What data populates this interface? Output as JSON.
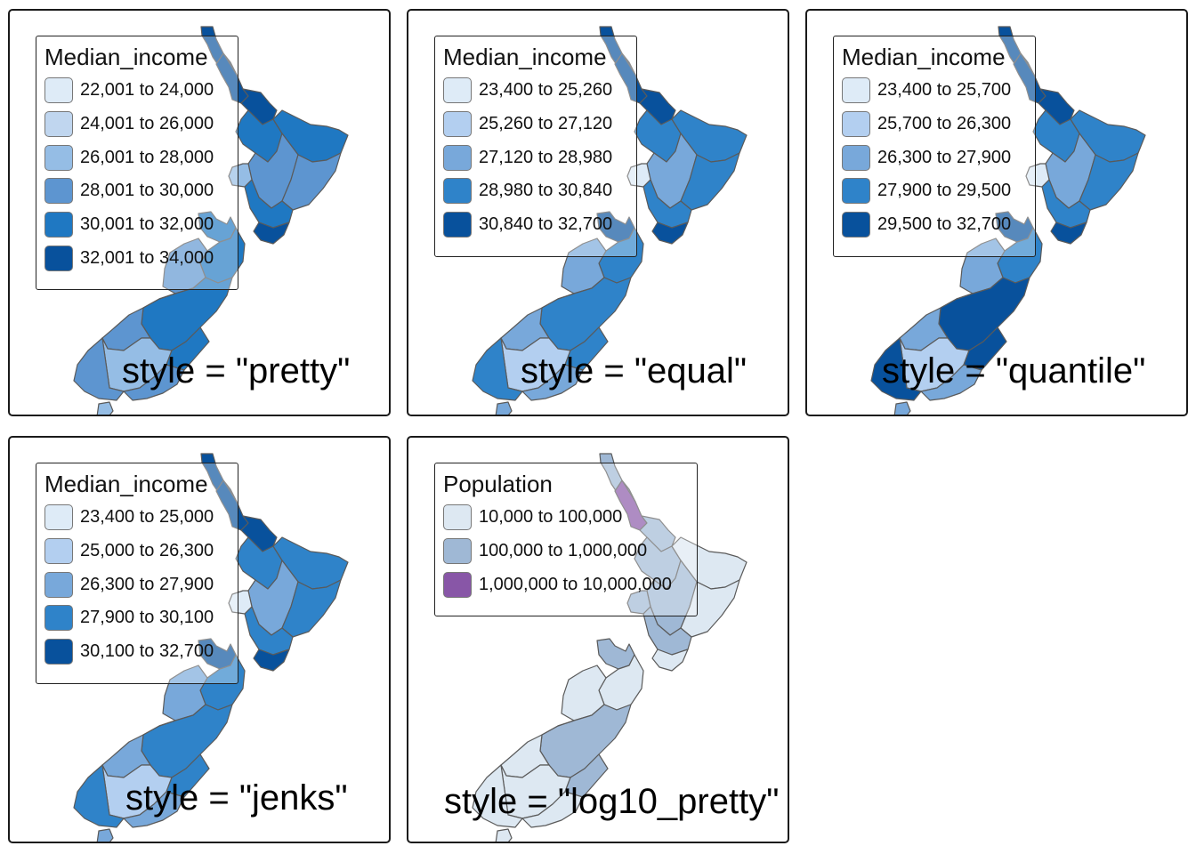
{
  "panels": [
    {
      "legend_title": "Median_income",
      "style_label": "style = \"pretty\"",
      "classes": [
        {
          "label": "22,001 to 24,000",
          "color": "#deebf7"
        },
        {
          "label": "24,001 to 26,000",
          "color": "#c0d6ef"
        },
        {
          "label": "26,001 to 28,000",
          "color": "#95bde5"
        },
        {
          "label": "28,001 to 30,000",
          "color": "#5d95d0"
        },
        {
          "label": "30,001 to 32,000",
          "color": "#1f78c2"
        },
        {
          "label": "32,001 to 34,000",
          "color": "#08519c"
        }
      ]
    },
    {
      "legend_title": "Median_income",
      "style_label": "style = \"equal\"",
      "classes": [
        {
          "label": "23,400 to 25,260",
          "color": "#deebf7"
        },
        {
          "label": "25,260 to 27,120",
          "color": "#b3cff0"
        },
        {
          "label": "27,120 to 28,980",
          "color": "#78a8da"
        },
        {
          "label": "28,980 to 30,840",
          "color": "#2f83c9"
        },
        {
          "label": "30,840 to 32,700",
          "color": "#08519c"
        }
      ]
    },
    {
      "legend_title": "Median_income",
      "style_label": "style = \"quantile\"",
      "classes": [
        {
          "label": "23,400 to 25,700",
          "color": "#deebf7"
        },
        {
          "label": "25,700 to 26,300",
          "color": "#b3cff0"
        },
        {
          "label": "26,300 to 27,900",
          "color": "#78a8da"
        },
        {
          "label": "27,900 to 29,500",
          "color": "#2f83c9"
        },
        {
          "label": "29,500 to 32,700",
          "color": "#08519c"
        }
      ]
    },
    {
      "legend_title": "Median_income",
      "style_label": "style = \"jenks\"",
      "classes": [
        {
          "label": "23,400 to 25,000",
          "color": "#deebf7"
        },
        {
          "label": "25,000 to 26,300",
          "color": "#b3cff0"
        },
        {
          "label": "26,300 to 27,900",
          "color": "#78a8da"
        },
        {
          "label": "27,900 to 30,100",
          "color": "#2f83c9"
        },
        {
          "label": "30,100 to 32,700",
          "color": "#08519c"
        }
      ]
    },
    {
      "legend_title": "Population",
      "style_label": "style = \"log10_pretty\"",
      "classes": [
        {
          "label": "10,000 to 100,000",
          "color": "#dde8f2"
        },
        {
          "label": "100,000 to 1,000,000",
          "color": "#9fb8d5"
        },
        {
          "label": "1,000,000 to 10,000,000",
          "color": "#8856a7"
        }
      ]
    }
  ]
}
